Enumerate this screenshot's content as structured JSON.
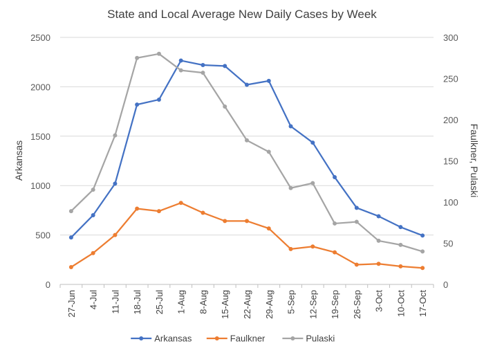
{
  "chart_data": {
    "type": "line",
    "title": "State and Local Average New Daily Cases by Week",
    "categories": [
      "27-Jun",
      "4-Jul",
      "11-Jul",
      "18-Jul",
      "25-Jul",
      "1-Aug",
      "8-Aug",
      "15-Aug",
      "22-Aug",
      "29-Aug",
      "5-Sep",
      "12-Sep",
      "19-Sep",
      "26-Sep",
      "3-Oct",
      "10-Oct",
      "17-Oct"
    ],
    "y_left": {
      "label": "Arkansas",
      "range": [
        0,
        2500
      ],
      "ticks": [
        0,
        500,
        1000,
        1500,
        2000,
        2500
      ]
    },
    "y_right": {
      "label": "Faulkner, Pulaski",
      "range": [
        0,
        300
      ],
      "ticks": [
        0,
        50,
        100,
        150,
        200,
        250,
        300
      ]
    },
    "grid": true,
    "legend_position": "bottom",
    "series": [
      {
        "name": "Arkansas",
        "axis": "left",
        "color": "#4472C4",
        "values": [
          475,
          700,
          1020,
          1820,
          1870,
          2265,
          2220,
          2210,
          2020,
          2060,
          1600,
          1435,
          1085,
          775,
          690,
          580,
          495
        ]
      },
      {
        "name": "Faulkner",
        "axis": "right",
        "color": "#ED7D31",
        "values": [
          21,
          38,
          60,
          92,
          89,
          99,
          87,
          77,
          77,
          68,
          43,
          46,
          39,
          24,
          25,
          22,
          20
        ]
      },
      {
        "name": "Pulaski",
        "axis": "right",
        "color": "#A5A5A5",
        "values": [
          89,
          115,
          181,
          275,
          280,
          260,
          257,
          216,
          175,
          161,
          117,
          123,
          74,
          76,
          53,
          48,
          40
        ]
      }
    ]
  }
}
